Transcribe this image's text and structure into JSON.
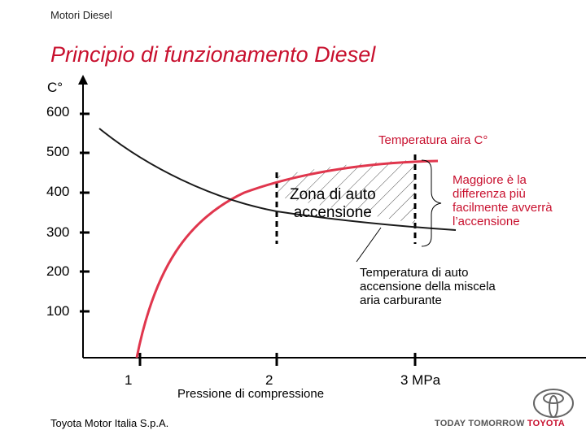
{
  "header": {
    "section": "Motori Diesel"
  },
  "title": "Principio di funzionamento Diesel",
  "y_axis": {
    "unit": "C°",
    "ticks": [
      "600",
      "500",
      "400",
      "300",
      "200",
      "100"
    ]
  },
  "x_axis": {
    "label": "Pressione di compressione",
    "ticks": [
      "1",
      "2",
      "3 MPa"
    ]
  },
  "labels": {
    "air_temperature": "Temperatura aira C°",
    "autoignition_temperature": [
      "Temperatura di auto",
      "accensione della miscela",
      "aria carburante"
    ],
    "zone": [
      "Zona di auto",
      "accensione"
    ],
    "note": [
      "Maggiore è la",
      "differenza più",
      "facilmente avverrà",
      "l’accensione"
    ]
  },
  "footer": {
    "company": "Toyota Motor Italia S.p.A.",
    "tagline_prefix": "TODAY TOMORROW",
    "tagline_brand": "TOYOTA"
  },
  "colors": {
    "accent": "#c8102e",
    "curve_air": "#e0364d",
    "curve_ignition": "#1a1a1a"
  }
}
